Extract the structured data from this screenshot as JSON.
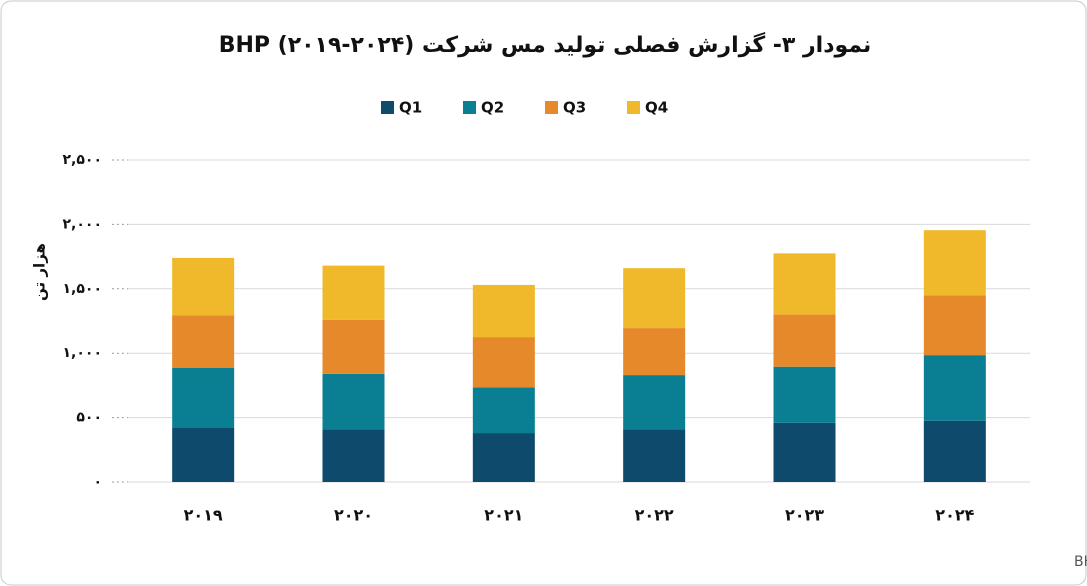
{
  "chart_data": {
    "type": "stacked_bar",
    "title": "نمودار ۳- گزارش فصلی تولید مس شرکت BHP (۲۰۱۹-۲۰۲۴)",
    "y_label": "هزار تن",
    "source": "منبع: گزارشات رسمی سالانه شرکت BHP",
    "categories": [
      "۲۰۱۹",
      "۲۰۲۰",
      "۲۰۲۱",
      "۲۰۲۲",
      "۲۰۲۳",
      "۲۰۲۴"
    ],
    "series": [
      {
        "name": "Q1",
        "color": "#0d4a6b",
        "values": [
          425,
          410,
          380,
          410,
          460,
          475
        ]
      },
      {
        "name": "Q2",
        "color": "#0a7f93",
        "values": [
          460,
          430,
          355,
          420,
          435,
          510
        ]
      },
      {
        "name": "Q3",
        "color": "#e5892b",
        "values": [
          410,
          420,
          390,
          365,
          405,
          465
        ]
      },
      {
        "name": "Q4",
        "color": "#f0b92c",
        "values": [
          445,
          420,
          405,
          465,
          475,
          505
        ]
      }
    ],
    "ylim": [
      0,
      2500
    ],
    "yticks": [
      {
        "value": 0,
        "label": "۰"
      },
      {
        "value": 500,
        "label": "۵۰۰"
      },
      {
        "value": 1000,
        "label": "۱,۰۰۰"
      },
      {
        "value": 1500,
        "label": "۱,۵۰۰"
      },
      {
        "value": 2000,
        "label": "۲,۰۰۰"
      },
      {
        "value": 2500,
        "label": "۲,۵۰۰"
      }
    ],
    "grid": true,
    "legend": "top"
  }
}
